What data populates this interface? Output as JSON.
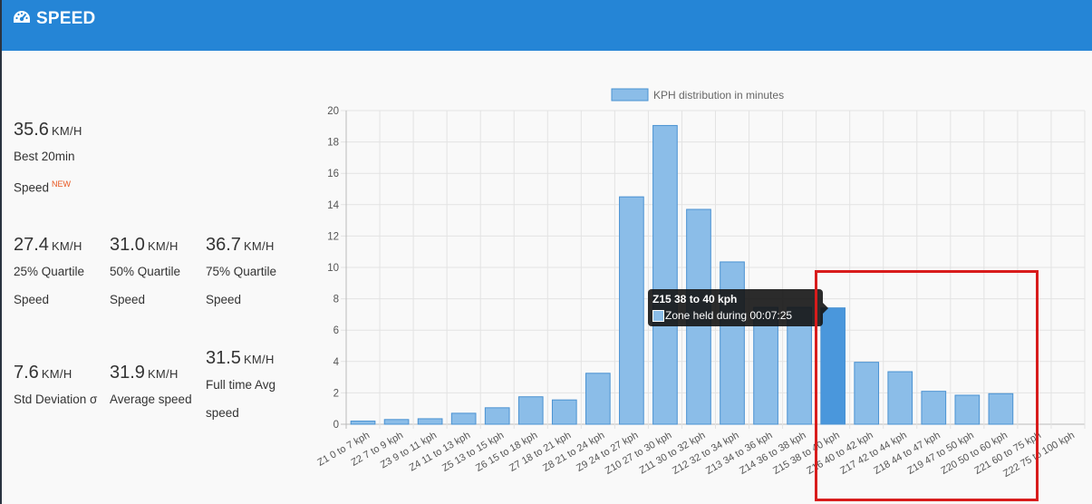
{
  "header": {
    "title": "SPEED",
    "icon": "dashboard-gauge-icon"
  },
  "stats": {
    "best": {
      "value": "35.6",
      "unit": "KM/H",
      "label_line1": "Best 20min",
      "label_line2": "Speed",
      "badge": "NEW"
    },
    "q25": {
      "value": "27.4",
      "unit": "KM/H",
      "label_line1": "25% Quartile",
      "label_line2": "Speed"
    },
    "q50": {
      "value": "31.0",
      "unit": "KM/H",
      "label_line1": "50% Quartile",
      "label_line2": "Speed"
    },
    "q75": {
      "value": "36.7",
      "unit": "KM/H",
      "label_line1": "75% Quartile",
      "label_line2": "Speed"
    },
    "std": {
      "value": "7.6",
      "unit": "KM/H",
      "label_line1": "Std Deviation σ"
    },
    "avg": {
      "value": "31.9",
      "unit": "KM/H",
      "label_line1": "Average speed"
    },
    "fulltime": {
      "value": "31.5",
      "unit": "KM/H",
      "label_line1": "Full time Avg",
      "label_line2": "speed"
    }
  },
  "tooltip": {
    "title": "Z15 38 to 40 kph",
    "body": "Zone held during 00:07:25"
  },
  "colors": {
    "bar_fill": "#8bbde8",
    "bar_border": "#4a92d2",
    "bar_highlight": "#4a97dc",
    "annotation_box": "#d81c1c"
  },
  "chart_data": {
    "type": "bar",
    "categories": [
      "Z1 0 to 7 kph",
      "Z2 7 to 9 kph",
      "Z3 9 to 11 kph",
      "Z4 11 to 13 kph",
      "Z5 13 to 15 kph",
      "Z6 15 to 18 kph",
      "Z7 18 to 21 kph",
      "Z8 21 to 24 kph",
      "Z9 24 to 27 kph",
      "Z10 27 to 30 kph",
      "Z11 30 to 32 kph",
      "Z12 32 to 34 kph",
      "Z13 34 to 36 kph",
      "Z14 36 to 38 kph",
      "Z15 38 to 40 kph",
      "Z16 40 to 42 kph",
      "Z17 42 to 44 kph",
      "Z18 44 to 47 kph",
      "Z19 47 to 50 kph",
      "Z20 50 to 60 kph",
      "Z21 60 to 75 kph",
      "Z22 75 to 100 kph"
    ],
    "series": [
      {
        "name": "KPH distribution in minutes",
        "values": [
          0.2,
          0.3,
          0.35,
          0.7,
          1.05,
          1.75,
          1.55,
          3.25,
          14.5,
          19.05,
          13.7,
          10.35,
          7.45,
          7.45,
          7.42,
          3.95,
          3.35,
          2.1,
          1.85,
          1.95,
          0,
          0
        ]
      }
    ],
    "highlighted_index": 14,
    "ylim": [
      0,
      20
    ],
    "yticks": [
      0,
      2,
      4,
      6,
      8,
      10,
      12,
      14,
      16,
      18,
      20
    ],
    "grid": true,
    "legend": "top-center",
    "title": "",
    "xlabel": "",
    "ylabel": ""
  }
}
